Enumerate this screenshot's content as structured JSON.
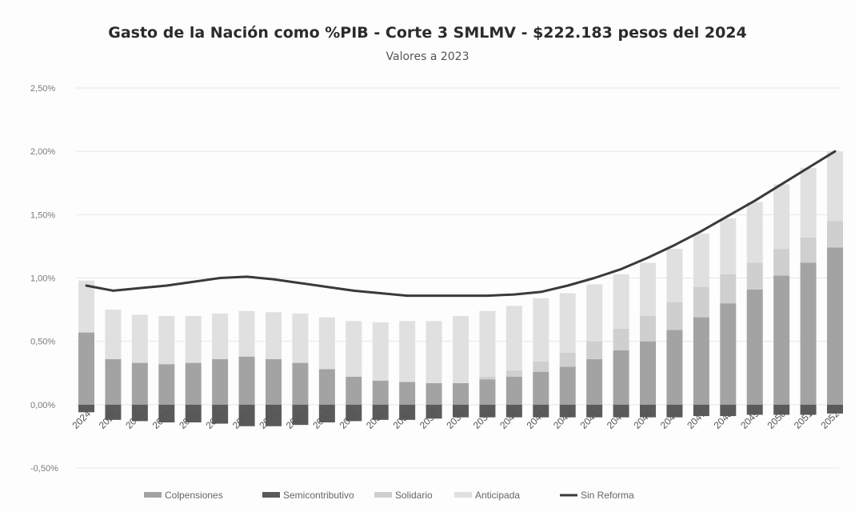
{
  "chart_data": {
    "type": "bar",
    "stacked": true,
    "title": "Gasto de la Nación como %PIB - Corte 3 SMLMV - $222.183 pesos del 2024",
    "subtitle": "Valores a 2023",
    "categories": [
      "2024",
      "2025",
      "2026",
      "2027",
      "2028",
      "2029",
      "2030",
      "2031",
      "2032",
      "2033",
      "2034",
      "2035",
      "2036",
      "2037",
      "2038",
      "2039",
      "2040",
      "2041",
      "2042",
      "2043",
      "2044",
      "2045",
      "2046",
      "2047",
      "2048",
      "2049",
      "2050",
      "2051",
      "2052"
    ],
    "tick_labels": [
      "2024",
      "2025",
      "2026",
      "2027",
      "2028",
      "2029",
      "2030",
      "2031",
      "2032",
      "2033",
      "2034",
      "2035",
      "2036",
      "2037",
      "2038",
      "2039",
      "2040",
      "2041",
      "2042",
      "2043",
      "2044",
      "2045",
      "2046",
      "2047",
      "2048",
      "2049",
      "2050",
      "2051",
      "2052"
    ],
    "series": [
      {
        "name": "Colpensiones",
        "color": "#a3a3a3",
        "values": [
          0.57,
          0.36,
          0.33,
          0.32,
          0.33,
          0.36,
          0.38,
          0.36,
          0.33,
          0.28,
          0.22,
          0.19,
          0.18,
          0.17,
          0.17,
          0.2,
          0.22,
          0.26,
          0.3,
          0.36,
          0.43,
          0.5,
          0.59,
          0.69,
          0.8,
          0.91,
          1.02,
          1.12,
          1.24
        ]
      },
      {
        "name": "Semicontributivo",
        "color": "#5a5a5a",
        "values": [
          -0.06,
          -0.12,
          -0.13,
          -0.14,
          -0.14,
          -0.15,
          -0.17,
          -0.17,
          -0.16,
          -0.14,
          -0.13,
          -0.12,
          -0.12,
          -0.11,
          -0.1,
          -0.1,
          -0.1,
          -0.1,
          -0.1,
          -0.1,
          -0.1,
          -0.1,
          -0.1,
          -0.09,
          -0.09,
          -0.08,
          -0.08,
          -0.08,
          -0.07
        ]
      },
      {
        "name": "Solidario",
        "color": "#cfcfcf",
        "values": [
          0.0,
          0.0,
          0.0,
          0.0,
          0.0,
          0.0,
          0.0,
          0.0,
          0.0,
          0.0,
          0.0,
          0.0,
          0.0,
          0.0,
          0.0,
          0.02,
          0.05,
          0.08,
          0.11,
          0.14,
          0.17,
          0.2,
          0.22,
          0.24,
          0.23,
          0.21,
          0.21,
          0.2,
          0.21
        ]
      },
      {
        "name": "Anticipada",
        "color": "#e0e0e0",
        "values": [
          0.41,
          0.39,
          0.38,
          0.38,
          0.37,
          0.36,
          0.36,
          0.37,
          0.39,
          0.41,
          0.44,
          0.46,
          0.48,
          0.49,
          0.53,
          0.52,
          0.51,
          0.5,
          0.47,
          0.45,
          0.43,
          0.42,
          0.42,
          0.42,
          0.44,
          0.48,
          0.51,
          0.55,
          0.55
        ]
      }
    ],
    "line": {
      "name": "Sin Reforma",
      "color": "#3a3a3a",
      "values": [
        0.94,
        0.9,
        0.92,
        0.94,
        0.97,
        1.0,
        1.01,
        0.99,
        0.96,
        0.93,
        0.9,
        0.88,
        0.86,
        0.86,
        0.86,
        0.86,
        0.87,
        0.89,
        0.94,
        1.0,
        1.07,
        1.16,
        1.26,
        1.37,
        1.49,
        1.61,
        1.74,
        1.87,
        2.0
      ]
    },
    "y_ticks": [
      "2,50%",
      "2,00%",
      "1,50%",
      "1,00%",
      "0,50%",
      "0,00%",
      "-0,50%"
    ],
    "y_tick_values": [
      2.5,
      2.0,
      1.5,
      1.0,
      0.5,
      0.0,
      -0.5
    ],
    "ylim": [
      -0.5,
      2.5
    ],
    "grid": true,
    "legend_position": "bottom"
  }
}
